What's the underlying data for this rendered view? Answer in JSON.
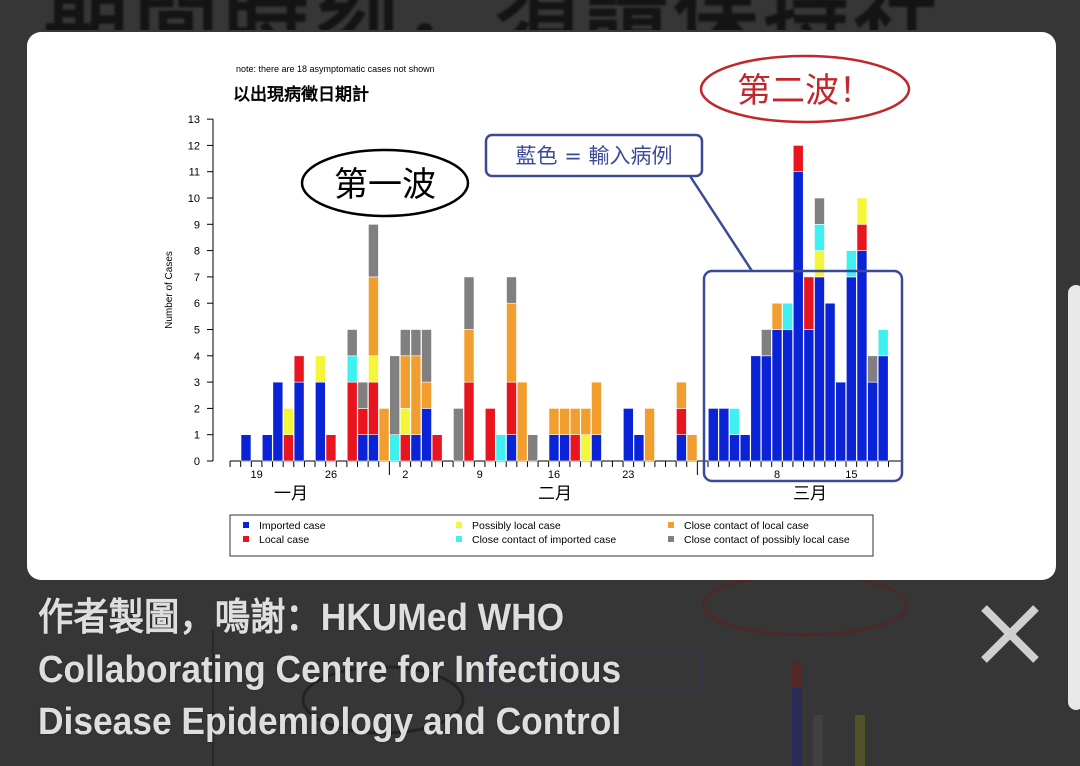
{
  "background": {
    "heading": "期間時刻，須請保持社"
  },
  "chart_data": {
    "type": "bar",
    "stacked": true,
    "note": "note: there are 18 asymptomatic cases not shown",
    "title": "以出現病徵日期計",
    "ylabel": "Number of Cases",
    "ylim": [
      0,
      13
    ],
    "yticks": [
      0,
      1,
      2,
      3,
      4,
      5,
      6,
      7,
      8,
      9,
      10,
      11,
      12,
      13
    ],
    "x_tick_labels": [
      {
        "date": "01-19",
        "label": "19"
      },
      {
        "date": "01-26",
        "label": "26"
      },
      {
        "date": "02-02",
        "label": "2"
      },
      {
        "date": "02-09",
        "label": "9"
      },
      {
        "date": "02-16",
        "label": "16"
      },
      {
        "date": "02-23",
        "label": "23"
      },
      {
        "date": "03-08",
        "label": "8"
      },
      {
        "date": "03-15",
        "label": "15"
      }
    ],
    "month_labels": [
      "一月",
      "二月",
      "三月"
    ],
    "date_range": [
      "01-18",
      "03-18"
    ],
    "series": [
      {
        "name": "Imported case",
        "color": "#0a23d6"
      },
      {
        "name": "Local case",
        "color": "#e8141e"
      },
      {
        "name": "Possibly local case",
        "color": "#f5f53a"
      },
      {
        "name": "Close contact of imported case",
        "color": "#3ef0f0"
      },
      {
        "name": "Close contact of local case",
        "color": "#f29e2e"
      },
      {
        "name": "Close contact of possibly local case",
        "color": "#808080"
      }
    ],
    "legend_position": "bottom",
    "bars": [
      {
        "date": "01-18",
        "values": [
          1,
          0,
          0,
          0,
          0,
          0
        ]
      },
      {
        "date": "01-20",
        "values": [
          1,
          0,
          0,
          0,
          0,
          0
        ]
      },
      {
        "date": "01-21",
        "values": [
          3,
          0,
          0,
          0,
          0,
          0
        ]
      },
      {
        "date": "01-22",
        "values": [
          0,
          1,
          1,
          0,
          0,
          0
        ]
      },
      {
        "date": "01-23",
        "values": [
          3,
          1,
          0,
          0,
          0,
          0
        ]
      },
      {
        "date": "01-25",
        "values": [
          3,
          0,
          1,
          0,
          0,
          0
        ]
      },
      {
        "date": "01-26",
        "values": [
          0,
          1,
          0,
          0,
          0,
          0
        ]
      },
      {
        "date": "01-28",
        "values": [
          0,
          3,
          0,
          1,
          0,
          1
        ]
      },
      {
        "date": "01-29",
        "values": [
          1,
          1,
          0,
          0,
          0,
          1
        ]
      },
      {
        "date": "01-30",
        "values": [
          1,
          2,
          1,
          0,
          3,
          2
        ]
      },
      {
        "date": "01-31",
        "values": [
          0,
          0,
          0,
          0,
          2,
          0
        ]
      },
      {
        "date": "02-01",
        "values": [
          0,
          0,
          0,
          1,
          0,
          3
        ]
      },
      {
        "date": "02-02",
        "values": [
          0,
          1,
          1,
          0,
          2,
          1
        ]
      },
      {
        "date": "02-03",
        "values": [
          1,
          0,
          0,
          0,
          3,
          1
        ]
      },
      {
        "date": "02-04",
        "values": [
          2,
          0,
          0,
          0,
          1,
          2
        ]
      },
      {
        "date": "02-05",
        "values": [
          0,
          1,
          0,
          0,
          0,
          0
        ]
      },
      {
        "date": "02-07",
        "values": [
          0,
          0,
          0,
          0,
          0,
          2
        ]
      },
      {
        "date": "02-08",
        "values": [
          0,
          3,
          0,
          0,
          2,
          2
        ]
      },
      {
        "date": "02-10",
        "values": [
          0,
          2,
          0,
          0,
          0,
          0
        ]
      },
      {
        "date": "02-11",
        "values": [
          0,
          0,
          0,
          1,
          0,
          0
        ]
      },
      {
        "date": "02-12",
        "values": [
          1,
          2,
          0,
          0,
          3,
          1
        ]
      },
      {
        "date": "02-13",
        "values": [
          0,
          0,
          0,
          0,
          3,
          0
        ]
      },
      {
        "date": "02-14",
        "values": [
          0,
          0,
          0,
          0,
          0,
          1
        ]
      },
      {
        "date": "02-16",
        "values": [
          1,
          0,
          0,
          0,
          1,
          0
        ]
      },
      {
        "date": "02-17",
        "values": [
          1,
          0,
          0,
          0,
          1,
          0
        ]
      },
      {
        "date": "02-18",
        "values": [
          0,
          1,
          0,
          0,
          1,
          0
        ]
      },
      {
        "date": "02-19",
        "values": [
          0,
          0,
          1,
          0,
          1,
          0
        ]
      },
      {
        "date": "02-20",
        "values": [
          1,
          0,
          0,
          0,
          2,
          0
        ]
      },
      {
        "date": "02-23",
        "values": [
          2,
          0,
          0,
          0,
          0,
          0
        ]
      },
      {
        "date": "02-24",
        "values": [
          1,
          0,
          0,
          0,
          0,
          0
        ]
      },
      {
        "date": "02-25",
        "values": [
          0,
          0,
          0,
          0,
          2,
          0
        ]
      },
      {
        "date": "02-28",
        "values": [
          1,
          1,
          0,
          0,
          1,
          0
        ]
      },
      {
        "date": "02-29",
        "values": [
          0,
          0,
          0,
          0,
          1,
          0
        ]
      },
      {
        "date": "03-02",
        "values": [
          2,
          0,
          0,
          0,
          0,
          0
        ]
      },
      {
        "date": "03-03",
        "values": [
          2,
          0,
          0,
          0,
          0,
          0
        ]
      },
      {
        "date": "03-04",
        "values": [
          1,
          0,
          0,
          1,
          0,
          0
        ]
      },
      {
        "date": "03-05",
        "values": [
          1,
          0,
          0,
          0,
          0,
          0
        ]
      },
      {
        "date": "03-06",
        "values": [
          4,
          0,
          0,
          0,
          0,
          0
        ]
      },
      {
        "date": "03-07",
        "values": [
          4,
          0,
          0,
          0,
          0,
          1
        ]
      },
      {
        "date": "03-08",
        "values": [
          5,
          0,
          0,
          0,
          1,
          0
        ]
      },
      {
        "date": "03-09",
        "values": [
          5,
          0,
          0,
          1,
          0,
          0
        ]
      },
      {
        "date": "03-10",
        "values": [
          11,
          1,
          0,
          0,
          0,
          0
        ]
      },
      {
        "date": "03-11",
        "values": [
          5,
          2,
          0,
          0,
          0,
          0
        ]
      },
      {
        "date": "03-12",
        "values": [
          7,
          0,
          1,
          1,
          0,
          1
        ]
      },
      {
        "date": "03-13",
        "values": [
          6,
          0,
          0,
          0,
          0,
          0
        ]
      },
      {
        "date": "03-14",
        "values": [
          3,
          0,
          0,
          0,
          0,
          0
        ]
      },
      {
        "date": "03-15",
        "values": [
          7,
          0,
          0,
          1,
          0,
          0
        ]
      },
      {
        "date": "03-16",
        "values": [
          8,
          1,
          1,
          0,
          0,
          0
        ]
      },
      {
        "date": "03-17",
        "values": [
          3,
          0,
          0,
          0,
          0,
          1
        ]
      },
      {
        "date": "03-18",
        "values": [
          4,
          0,
          0,
          1,
          0,
          0
        ]
      }
    ],
    "annotations": {
      "first_wave": "第一波",
      "second_wave": "第二波！",
      "blue_note": "藍色 = 輸入病例"
    }
  },
  "caption": {
    "lines": [
      "作者製圖，鳴謝：HKUMed WHO",
      "Collaborating Centre for Infectious",
      "Disease Epidemiology and Control"
    ]
  },
  "close_icon": "close-x-icon"
}
